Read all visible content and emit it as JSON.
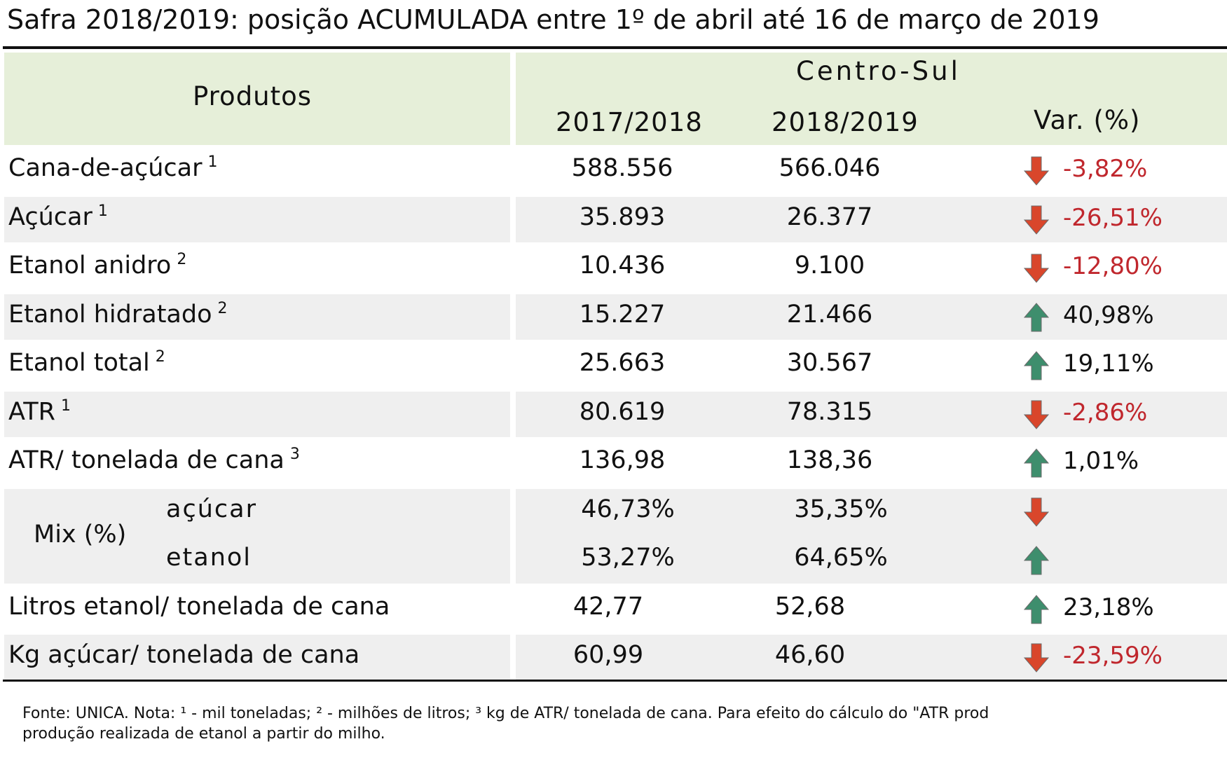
{
  "title": "Safra 2018/2019: posição ACUMULADA entre 1º de abril até 16 de março de 2019",
  "header": {
    "produtos": "Produtos",
    "region": "Centro-Sul",
    "col1": "2017/2018",
    "col2": "2018/2019",
    "col3": "Var. (%)"
  },
  "colors": {
    "header_bg": "#e6efd9",
    "stripe_bg": "#efefef",
    "negative": "#c0272d",
    "arrow_down": "#d9462b",
    "arrow_up": "#3e8e6d"
  },
  "rows": [
    {
      "label": "Cana-de-açúcar",
      "note": "1",
      "v1": "588.556",
      "v2": "566.046",
      "var": "-3,82%",
      "dir": "down"
    },
    {
      "label": "Açúcar",
      "note": "1",
      "v1": "35.893",
      "v2": "26.377",
      "var": "-26,51%",
      "dir": "down"
    },
    {
      "label": "Etanol anidro",
      "note": "2",
      "v1": "10.436",
      "v2": "9.100",
      "var": "-12,80%",
      "dir": "down"
    },
    {
      "label": "Etanol hidratado",
      "note": "2",
      "v1": "15.227",
      "v2": "21.466",
      "var": "40,98%",
      "dir": "up"
    },
    {
      "label": "Etanol total",
      "note": "2",
      "v1": "25.663",
      "v2": "30.567",
      "var": "19,11%",
      "dir": "up"
    },
    {
      "label": "ATR",
      "note": "1",
      "v1": "80.619",
      "v2": "78.315",
      "var": "-2,86%",
      "dir": "down"
    },
    {
      "label": "ATR/ tonelada de cana",
      "note": "3",
      "v1": "136,98",
      "v2": "138,36",
      "var": "1,01%",
      "dir": "up"
    }
  ],
  "mix": {
    "label": "Mix (%)",
    "acucar": {
      "label": "açúcar",
      "v1": "46,73%",
      "v2": "35,35%",
      "dir": "down"
    },
    "etanol": {
      "label": "etanol",
      "v1": "53,27%",
      "v2": "64,65%",
      "dir": "up"
    }
  },
  "tail_rows": [
    {
      "label": "Litros etanol/ tonelada de cana",
      "v1": "42,77",
      "v2": "52,68",
      "var": "23,18%",
      "dir": "up"
    },
    {
      "label": "Kg açúcar/ tonelada de cana",
      "v1": "60,99",
      "v2": "46,60",
      "var": "-23,59%",
      "dir": "down"
    }
  ],
  "footnote": {
    "line1": "Fonte: UNICA. Nota: ¹ - mil toneladas; ² - milhões de litros; ³   kg de ATR/ tonelada de cana. Para efeito do cálculo do \"ATR prod",
    "line2": "produção realizada de etanol a partir do milho."
  }
}
